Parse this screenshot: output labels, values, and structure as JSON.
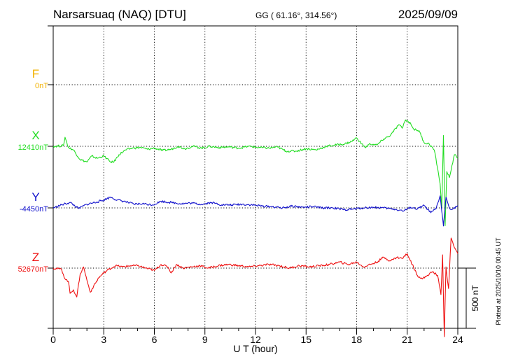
{
  "chart_data": {
    "type": "line",
    "title": "Narsarsuaq (NAQ)  [DTU]",
    "coordinates": "GG ( 61.16°, 314.56°)",
    "date": "2025/09/09",
    "xlabel": "U T (hour)",
    "x_ticks": [
      "0",
      "3",
      "6",
      "9",
      "12",
      "15",
      "18",
      "21",
      "24"
    ],
    "xlim": [
      0,
      24
    ],
    "grid": true,
    "scale_bar_label": "500 nT",
    "scale_bar_nT": 500,
    "plotted_note": "Plotted at 2025/10/10 00:45 UT",
    "colors": {
      "F": "#f2b200",
      "X": "#22dd22",
      "Y": "#1111cc",
      "Z": "#ee1111",
      "frame": "#000000"
    },
    "series": [
      {
        "name": "F",
        "baseline_label": "0nT",
        "baseline_nT": 0,
        "color": "#f2b200",
        "x": [],
        "values": []
      },
      {
        "name": "X",
        "baseline_label": "12410nT",
        "baseline_nT": 12410,
        "color": "#22dd22",
        "x": [
          0,
          0.6,
          0.7,
          0.9,
          1.2,
          1.6,
          2.0,
          2.3,
          2.6,
          3.0,
          3.4,
          3.6,
          3.9,
          4.3,
          4.7,
          5.2,
          5.6,
          6.0,
          6.5,
          7.0,
          7.4,
          7.8,
          8.3,
          8.8,
          9.3,
          9.8,
          10.4,
          11.0,
          11.6,
          12.2,
          12.8,
          13.3,
          13.8,
          14.4,
          15.0,
          15.6,
          16.2,
          16.7,
          17.3,
          17.7,
          18.0,
          18.3,
          18.5,
          18.8,
          19.2,
          19.6,
          20.0,
          20.5,
          20.7,
          20.9,
          21.2,
          21.4,
          21.7,
          22.0,
          22.3,
          22.6,
          22.8,
          22.95,
          23.05,
          23.15,
          23.25,
          23.35,
          23.5,
          23.65,
          23.8,
          24.0
        ],
        "values": [
          12410,
          12415,
          12485,
          12400,
          12380,
          12300,
          12280,
          12330,
          12310,
          12330,
          12280,
          12280,
          12340,
          12380,
          12395,
          12400,
          12385,
          12395,
          12375,
          12385,
          12410,
          12390,
          12410,
          12395,
          12410,
          12400,
          12405,
          12395,
          12410,
          12400,
          12395,
          12405,
          12370,
          12370,
          12390,
          12380,
          12410,
          12420,
          12430,
          12450,
          12480,
          12430,
          12400,
          12430,
          12420,
          12470,
          12500,
          12590,
          12560,
          12630,
          12600,
          12550,
          12540,
          12440,
          12430,
          12380,
          12230,
          12100,
          11900,
          12500,
          11750,
          12200,
          12150,
          12250,
          12340,
          12310
        ]
      },
      {
        "name": "Y",
        "baseline_label": "-4450nT",
        "baseline_nT": -4450,
        "color": "#1111cc",
        "x": [
          0,
          0.5,
          1.0,
          1.5,
          2.0,
          2.6,
          3.0,
          3.4,
          3.8,
          4.2,
          4.8,
          5.3,
          5.9,
          6.4,
          7.0,
          7.6,
          8.2,
          8.8,
          9.4,
          10.0,
          10.6,
          11.2,
          11.8,
          12.4,
          13.0,
          13.6,
          14.2,
          14.8,
          15.4,
          16.0,
          16.6,
          17.2,
          17.8,
          18.4,
          19.0,
          19.6,
          20.2,
          20.8,
          21.2,
          21.6,
          22.0,
          22.4,
          22.7,
          22.95,
          23.15,
          23.3,
          23.5,
          23.7,
          24.0
        ],
        "values": [
          -4450,
          -4425,
          -4405,
          -4455,
          -4420,
          -4400,
          -4385,
          -4360,
          -4385,
          -4395,
          -4420,
          -4415,
          -4425,
          -4395,
          -4405,
          -4415,
          -4410,
          -4420,
          -4405,
          -4425,
          -4425,
          -4420,
          -4425,
          -4435,
          -4440,
          -4450,
          -4435,
          -4445,
          -4440,
          -4450,
          -4450,
          -4465,
          -4460,
          -4450,
          -4445,
          -4450,
          -4460,
          -4475,
          -4445,
          -4460,
          -4430,
          -4490,
          -4460,
          -4350,
          -4600,
          -4360,
          -4450,
          -4460,
          -4430
        ]
      },
      {
        "name": "Z",
        "baseline_label": "52670nT",
        "baseline_nT": 52670,
        "color": "#ee1111",
        "x": [
          0,
          0.5,
          0.7,
          0.9,
          1.0,
          1.2,
          1.4,
          1.6,
          1.8,
          2.0,
          2.2,
          2.4,
          2.7,
          3.0,
          3.3,
          3.7,
          4.1,
          4.6,
          5.0,
          5.5,
          6.0,
          6.4,
          6.8,
          7.0,
          7.3,
          7.7,
          8.2,
          8.7,
          9.2,
          9.8,
          10.4,
          11.0,
          11.6,
          12.2,
          12.8,
          13.4,
          14.0,
          14.6,
          15.2,
          15.8,
          16.4,
          17.0,
          17.5,
          18.0,
          18.4,
          18.8,
          19.2,
          19.6,
          20.0,
          20.4,
          20.7,
          21.0,
          21.3,
          21.6,
          21.9,
          22.2,
          22.5,
          22.8,
          23.0,
          23.1,
          23.2,
          23.3,
          23.45,
          23.6,
          23.8,
          24.0
        ],
        "values": [
          52670,
          52660,
          52580,
          52560,
          52460,
          52490,
          52430,
          52620,
          52680,
          52570,
          52470,
          52520,
          52590,
          52630,
          52660,
          52690,
          52680,
          52690,
          52690,
          52670,
          52650,
          52700,
          52680,
          52630,
          52700,
          52670,
          52680,
          52690,
          52670,
          52690,
          52700,
          52690,
          52680,
          52690,
          52700,
          52690,
          52670,
          52690,
          52680,
          52690,
          52700,
          52720,
          52700,
          52720,
          52680,
          52700,
          52720,
          52760,
          52730,
          52760,
          52750,
          52790,
          52700,
          52610,
          52580,
          52610,
          52640,
          52610,
          52450,
          52780,
          52100,
          52680,
          52500,
          52920,
          52840,
          52790
        ]
      }
    ]
  }
}
